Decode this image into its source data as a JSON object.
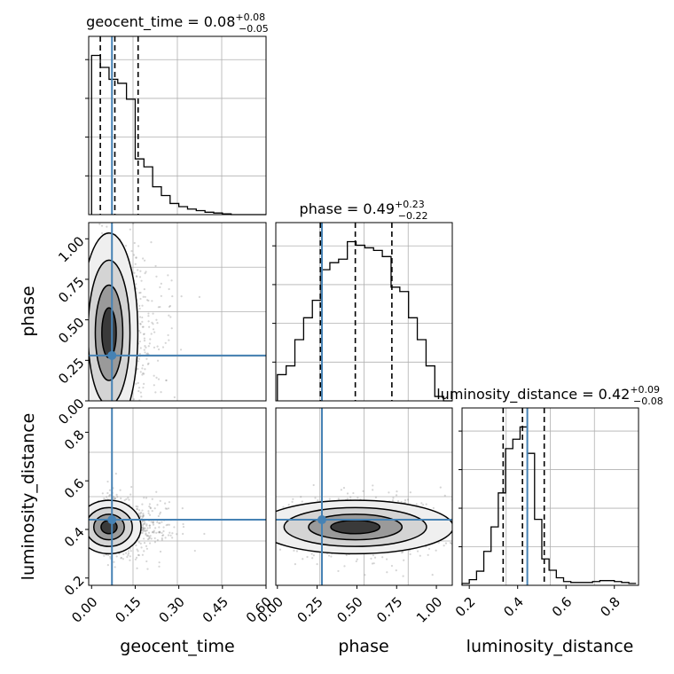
{
  "chart_data": {
    "type": "corner",
    "parameters": [
      "geocent_time",
      "phase",
      "luminosity_distance"
    ],
    "truths": {
      "geocent_time": 0.07,
      "phase": 0.28,
      "luminosity_distance": 0.44
    },
    "truth_color": "#4682b4",
    "panels": {
      "geocent_time_hist": {
        "title_prefix": "geocent_time = 0.08",
        "title_plus": "+0.08",
        "title_minus": "−0.05",
        "xlim": [
          -0.01,
          0.6
        ],
        "quantiles": [
          0.03,
          0.08,
          0.16
        ],
        "bin_edges": [
          0.0,
          0.03,
          0.06,
          0.09,
          0.12,
          0.15,
          0.18,
          0.21,
          0.24,
          0.27,
          0.3,
          0.33,
          0.36,
          0.39,
          0.42,
          0.45,
          0.48,
          0.51,
          0.54,
          0.57,
          0.6
        ],
        "counts": [
          200,
          185,
          170,
          165,
          145,
          70,
          60,
          35,
          24,
          14,
          10,
          7,
          5,
          3,
          2,
          1,
          0,
          0,
          0,
          0
        ]
      },
      "phase_hist": {
        "title_prefix": "phase = 0.49",
        "title_plus": "+0.23",
        "title_minus": "−0.22",
        "xlim": [
          -0.01,
          1.1
        ],
        "quantiles": [
          0.27,
          0.49,
          0.72
        ],
        "bin_edges": [
          0.0,
          0.055,
          0.11,
          0.165,
          0.22,
          0.275,
          0.33,
          0.385,
          0.44,
          0.495,
          0.55,
          0.605,
          0.66,
          0.715,
          0.77,
          0.825,
          0.88,
          0.935,
          0.99,
          1.045,
          1.1
        ],
        "counts": [
          30,
          40,
          70,
          95,
          115,
          150,
          158,
          162,
          182,
          178,
          175,
          172,
          165,
          130,
          125,
          95,
          70,
          40,
          5,
          0
        ]
      },
      "luminosity_distance_hist": {
        "title_prefix": "luminosity_distance = 0.42",
        "title_plus": "+0.09",
        "title_minus": "−0.08",
        "xlim": [
          0.17,
          0.9
        ],
        "quantiles": [
          0.34,
          0.42,
          0.51
        ],
        "bin_edges": [
          0.17,
          0.2,
          0.23,
          0.26,
          0.29,
          0.32,
          0.35,
          0.38,
          0.41,
          0.44,
          0.47,
          0.5,
          0.53,
          0.56,
          0.59,
          0.62,
          0.65,
          0.68,
          0.71,
          0.74,
          0.77,
          0.8,
          0.83,
          0.86,
          0.89
        ],
        "counts": [
          2,
          6,
          15,
          36,
          62,
          98,
          145,
          155,
          168,
          140,
          70,
          28,
          16,
          8,
          4,
          3,
          3,
          3,
          4,
          5,
          5,
          4,
          3,
          2
        ]
      },
      "phase_vs_geocent_time": {
        "xlim": [
          -0.01,
          0.6
        ],
        "ylim": [
          0.0,
          1.1
        ],
        "density_center": [
          0.06,
          0.42
        ],
        "density_spread": [
          0.045,
          0.28
        ]
      },
      "luminosity_distance_vs_geocent_time": {
        "xlim": [
          -0.01,
          0.6
        ],
        "ylim": [
          0.17,
          0.9
        ],
        "density_center": [
          0.06,
          0.41
        ],
        "density_spread": [
          0.05,
          0.05
        ]
      },
      "luminosity_distance_vs_phase": {
        "xlim": [
          -0.01,
          1.1
        ],
        "ylim": [
          0.17,
          0.9
        ],
        "density_center": [
          0.49,
          0.41
        ],
        "density_spread": [
          0.28,
          0.05
        ]
      }
    },
    "xlabels": [
      "geocent_time",
      "phase",
      "luminosity_distance"
    ],
    "ylabels": [
      "phase",
      "luminosity_distance"
    ],
    "ticks": {
      "geocent_time": [
        "0.00",
        "0.15",
        "0.30",
        "0.45",
        "0.60"
      ],
      "phase": [
        "0.00",
        "0.25",
        "0.50",
        "0.75",
        "1.00"
      ],
      "luminosity_distance": [
        "0.2",
        "0.4",
        "0.6",
        "0.8"
      ]
    },
    "grid": true
  }
}
